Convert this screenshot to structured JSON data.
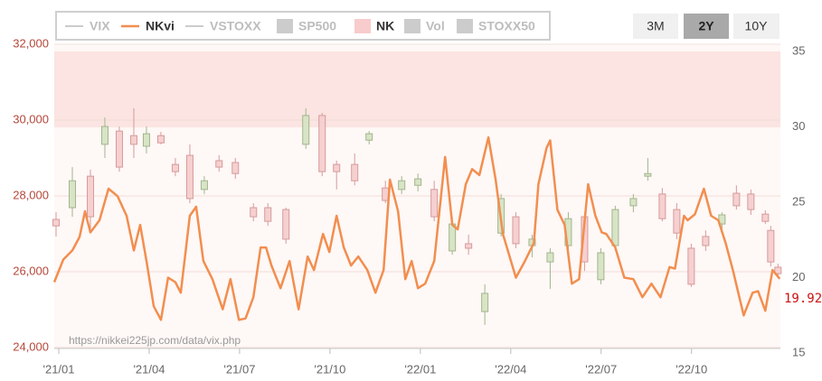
{
  "chart_data": {
    "type": "candlestick",
    "legend": [
      {
        "name": "VIX",
        "symbol": "line",
        "color": "#cccccc",
        "active": false
      },
      {
        "name": "NKvi",
        "symbol": "line",
        "color": "#f28e4f",
        "active": true
      },
      {
        "name": "VSTOXX",
        "symbol": "line",
        "color": "#cccccc",
        "active": false
      },
      {
        "name": "SP500",
        "symbol": "box",
        "color": "#cccccc",
        "active": false
      },
      {
        "name": "NK",
        "symbol": "box",
        "color": "#f8cccc",
        "active": true
      },
      {
        "name": "Vol",
        "symbol": "box",
        "color": "#cccccc",
        "active": false
      },
      {
        "name": "STOXX50",
        "symbol": "box",
        "color": "#cccccc",
        "active": false
      }
    ],
    "buttons": [
      "3M",
      "2Y",
      "10Y"
    ],
    "active_button": "2Y",
    "annotation": "https://nikkei225jp.com/data/vix.php",
    "xlim": [
      -0.15,
      23.95
    ],
    "xticks": [
      {
        "value": 0,
        "label": "'21/01"
      },
      {
        "value": 3,
        "label": "'21/04"
      },
      {
        "value": 6,
        "label": "'21/07"
      },
      {
        "value": 9,
        "label": "'21/10"
      },
      {
        "value": 12,
        "label": "'22/01"
      },
      {
        "value": 15,
        "label": "'22/04"
      },
      {
        "value": 18,
        "label": "'22/07"
      },
      {
        "value": 21,
        "label": "'22/10"
      }
    ],
    "ylim": [
      24000,
      32000
    ],
    "yticks": [
      {
        "value": 24000,
        "label": "24,000"
      },
      {
        "value": 26000,
        "label": "26,000"
      },
      {
        "value": 28000,
        "label": "28,000"
      },
      {
        "value": 30000,
        "label": "30,000"
      },
      {
        "value": 32000,
        "label": "32,000"
      }
    ],
    "y2lim": [
      15,
      35
    ],
    "y2ticks": [
      15,
      20,
      25,
      30,
      35
    ],
    "grid": true,
    "series": [
      {
        "name": "NK",
        "type": "candlestick",
        "up_color": "#d8e4c6",
        "up_border": "#a3b58c",
        "down_color": "#f6d0d0",
        "down_border": "#d59b9b",
        "x": [
          -0.09,
          0.45,
          1.05,
          1.53,
          2.01,
          2.49,
          2.91,
          3.39,
          3.87,
          4.35,
          4.83,
          5.32,
          5.86,
          6.46,
          6.94,
          7.54,
          8.2,
          8.74,
          9.22,
          9.82,
          10.3,
          10.84,
          11.38,
          11.92,
          12.46,
          13.06,
          13.6,
          14.14,
          14.68,
          15.17,
          15.71,
          16.31,
          16.91,
          17.45,
          17.99,
          18.47,
          19.07,
          19.55,
          20.03,
          20.51,
          20.99,
          21.47,
          22.01,
          22.49,
          22.97,
          23.45,
          23.63,
          23.87
        ],
        "open": [
          27380,
          27690,
          28520,
          29360,
          29710,
          29590,
          29310,
          29590,
          28830,
          29070,
          28170,
          28930,
          28880,
          27690,
          27690,
          27640,
          29360,
          30120,
          28830,
          28830,
          29470,
          28210,
          28170,
          28280,
          28170,
          26550,
          26740,
          24950,
          27020,
          27450,
          26690,
          26260,
          26690,
          27450,
          25790,
          26690,
          27740,
          28520,
          28050,
          27640,
          26620,
          26930,
          27260,
          28070,
          28050,
          27520,
          27090,
          26120
        ],
        "high": [
          27570,
          28760,
          28690,
          30070,
          29830,
          30310,
          29830,
          29690,
          29000,
          29360,
          28520,
          29070,
          29000,
          27810,
          27810,
          27690,
          30310,
          30190,
          28930,
          29120,
          29710,
          28400,
          28520,
          28590,
          28400,
          27450,
          26980,
          25670,
          28050,
          27570,
          26980,
          26620,
          27570,
          27570,
          26620,
          27740,
          28050,
          29000,
          28210,
          27810,
          26740,
          27090,
          27570,
          28280,
          28170,
          27620,
          27210,
          26210
        ],
        "low": [
          26930,
          27450,
          27090,
          29000,
          28640,
          29000,
          29120,
          29360,
          28520,
          27810,
          28050,
          28640,
          28450,
          27330,
          27210,
          26740,
          29240,
          28520,
          28170,
          28280,
          29360,
          27810,
          28050,
          28120,
          27330,
          26450,
          26450,
          24600,
          26930,
          26620,
          26380,
          25550,
          26550,
          26020,
          25670,
          26550,
          27570,
          28400,
          27330,
          26860,
          25600,
          26550,
          27090,
          27640,
          27500,
          27260,
          26140,
          25880
        ],
        "close": [
          27210,
          28400,
          27450,
          29830,
          28760,
          29360,
          29640,
          29400,
          28640,
          27930,
          28400,
          28760,
          28590,
          27450,
          27330,
          26860,
          30120,
          28640,
          28640,
          28400,
          29640,
          27880,
          28400,
          28450,
          27450,
          27260,
          26620,
          25430,
          27930,
          26740,
          26860,
          26500,
          27400,
          26260,
          26500,
          27640,
          27930,
          28590,
          27400,
          27020,
          25670,
          26690,
          27500,
          27740,
          27640,
          27330,
          26260,
          25950
        ]
      },
      {
        "name": "NKvi",
        "type": "line",
        "axis": "y2",
        "color": "#f28e4f",
        "x": [
          -0.15,
          0.15,
          0.45,
          0.69,
          0.87,
          1.05,
          1.35,
          1.65,
          1.95,
          2.25,
          2.49,
          2.7,
          2.91,
          3.15,
          3.39,
          3.63,
          3.87,
          4.05,
          4.35,
          4.56,
          4.8,
          5.1,
          5.44,
          5.7,
          5.98,
          6.2,
          6.46,
          6.7,
          6.88,
          7.06,
          7.36,
          7.66,
          7.96,
          8.26,
          8.47,
          8.77,
          8.98,
          9.22,
          9.46,
          9.7,
          9.94,
          10.24,
          10.51,
          10.78,
          10.99,
          11.26,
          11.5,
          11.71,
          11.92,
          12.16,
          12.46,
          12.82,
          13.06,
          13.24,
          13.51,
          13.72,
          13.96,
          14.26,
          14.5,
          14.74,
          15.17,
          15.47,
          15.77,
          15.92,
          16.19,
          16.31,
          16.55,
          16.79,
          17.03,
          17.27,
          17.57,
          17.81,
          18.02,
          18.17,
          18.47,
          18.77,
          19.07,
          19.37,
          19.67,
          19.97,
          20.27,
          20.45,
          20.75,
          20.87,
          21.11,
          21.41,
          21.65,
          21.89,
          22.13,
          22.37,
          22.73,
          23.03,
          23.21,
          23.45,
          23.69,
          23.93
        ],
        "values": [
          19.7,
          21.2,
          21.8,
          22.7,
          24.4,
          23.0,
          23.8,
          25.9,
          25.4,
          24.1,
          21.8,
          23.5,
          21.1,
          18.1,
          17.2,
          20.0,
          19.7,
          19.0,
          24.1,
          24.7,
          21.1,
          19.9,
          17.9,
          19.9,
          17.2,
          17.3,
          18.7,
          22.0,
          22.0,
          20.8,
          19.3,
          21.1,
          17.9,
          21.4,
          20.5,
          22.9,
          21.7,
          24.1,
          22.0,
          20.8,
          21.4,
          20.5,
          19.0,
          20.5,
          26.5,
          24.4,
          19.9,
          21.1,
          19.3,
          19.6,
          21.1,
          28.0,
          23.5,
          23.2,
          26.2,
          27.2,
          26.8,
          29.3,
          26.5,
          22.9,
          20.0,
          21.1,
          22.3,
          26.2,
          28.6,
          29.1,
          24.5,
          23.5,
          19.6,
          19.9,
          26.2,
          24.1,
          23.0,
          22.9,
          22.0,
          20.0,
          19.9,
          18.7,
          19.6,
          18.7,
          20.7,
          20.6,
          24.1,
          23.8,
          24.2,
          25.9,
          24.1,
          23.8,
          22.3,
          20.5,
          17.5,
          19.0,
          19.1,
          17.8,
          20.5,
          19.92
        ]
      }
    ]
  }
}
